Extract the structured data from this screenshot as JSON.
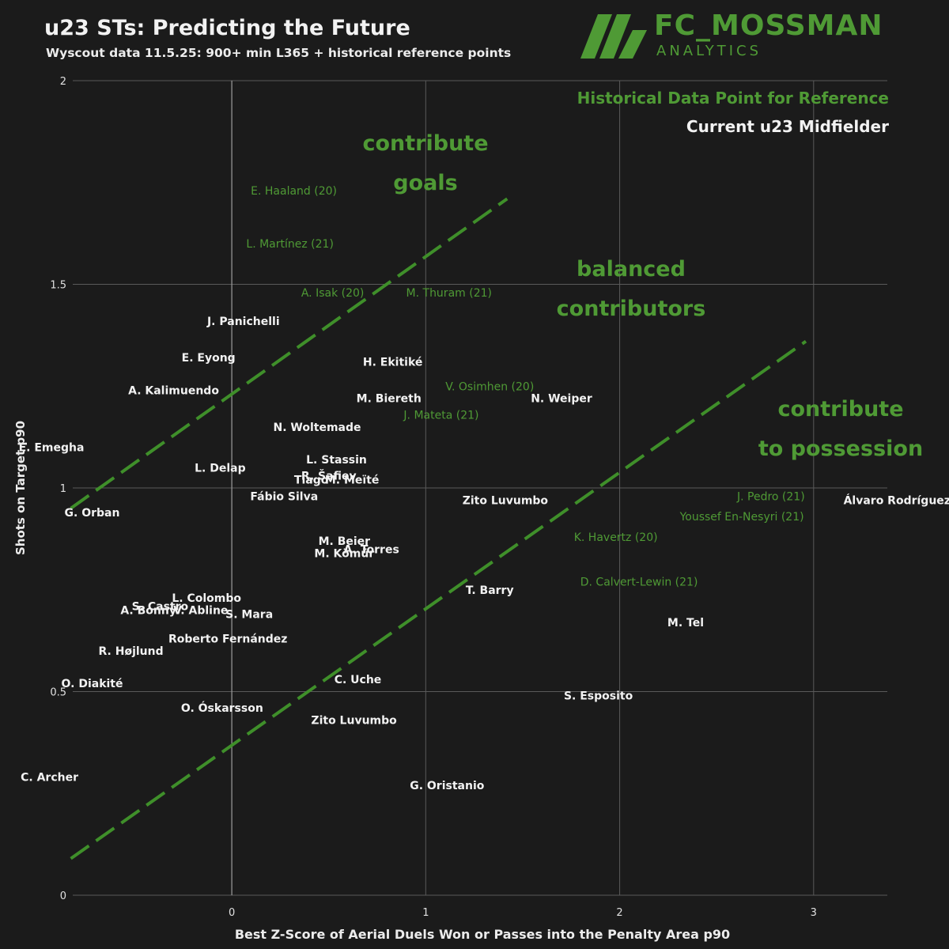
{
  "header": {
    "title": "u23 STs: Predicting the Future",
    "subtitle": "Wyscout data 11.5.25: 900+ min L365 + historical reference points"
  },
  "logo": {
    "name": "FC_MOSSMAN",
    "sub": "ANALYTICS",
    "color": "#4f9a35"
  },
  "legend": {
    "historical": "Historical Data Point for Reference",
    "current": "Current u23 Midfielder",
    "placement": "top-right"
  },
  "zones": {
    "goals": [
      "contribute",
      "goals"
    ],
    "balanced": [
      "balanced",
      "contributors"
    ],
    "possession": [
      "contribute",
      "to possession"
    ]
  },
  "colors": {
    "background": "#1b1b1b",
    "current": "#f2f2f2",
    "historical": "#4f9a35",
    "grid": "#5a5a5a",
    "zone_line": "#3f8f2a"
  },
  "chart_data": {
    "type": "scatter",
    "xlabel": "Best Z-Score of Aerial Duels Won or Passes into the Penalty Area p90",
    "ylabel": "Shots on Target p90",
    "xlim": [
      -0.82,
      3.38
    ],
    "ylim": [
      0,
      2
    ],
    "x_ticks": [
      0,
      1,
      2,
      3
    ],
    "y_ticks": [
      0,
      0.5,
      1,
      1.5,
      2
    ],
    "grid": true,
    "divider_lines": [
      {
        "from": [
          -0.83,
          0.95
        ],
        "to": [
          1.42,
          1.71
        ]
      },
      {
        "from": [
          -0.83,
          0.09
        ],
        "to": [
          2.96,
          1.36
        ]
      }
    ],
    "series": [
      {
        "name": "Historical Data Point for Reference",
        "points": [
          {
            "label": "E. Haaland (20)",
            "x": 0.32,
            "y": 1.73
          },
          {
            "label": "L. Martínez (21)",
            "x": 0.3,
            "y": 1.6
          },
          {
            "label": "A. Isak (20)",
            "x": 0.52,
            "y": 1.48
          },
          {
            "label": "M. Thuram (21)",
            "x": 1.12,
            "y": 1.48
          },
          {
            "label": "V. Osimhen (20)",
            "x": 1.33,
            "y": 1.25
          },
          {
            "label": "J. Mateta (21)",
            "x": 1.08,
            "y": 1.18
          },
          {
            "label": "J. Pedro (21)",
            "x": 2.78,
            "y": 0.98
          },
          {
            "label": "Youssef En-Nesyri (21)",
            "x": 2.63,
            "y": 0.93
          },
          {
            "label": "K. Havertz (20)",
            "x": 1.98,
            "y": 0.88
          },
          {
            "label": "D. Calvert-Lewin (21)",
            "x": 2.1,
            "y": 0.77
          }
        ]
      },
      {
        "name": "Current u23 Midfielder",
        "points": [
          {
            "label": "J. Panichelli",
            "x": 0.06,
            "y": 1.41
          },
          {
            "label": "E. Eyong",
            "x": -0.12,
            "y": 1.32
          },
          {
            "label": "H. Ekitiké",
            "x": 0.83,
            "y": 1.31
          },
          {
            "label": "A. Kalimuendo",
            "x": -0.3,
            "y": 1.24
          },
          {
            "label": "N. Weiper",
            "x": 1.7,
            "y": 1.22
          },
          {
            "label": "M. Biereth",
            "x": 0.81,
            "y": 1.22
          },
          {
            "label": "N. Woltemade",
            "x": 0.44,
            "y": 1.15
          },
          {
            "label": "E. Emegha",
            "x": -0.93,
            "y": 1.1
          },
          {
            "label": "L. Stassin",
            "x": 0.54,
            "y": 1.07
          },
          {
            "label": "L. Delap",
            "x": -0.06,
            "y": 1.05
          },
          {
            "label": "R. Šafiev",
            "x": 0.5,
            "y": 1.03
          },
          {
            "label": "Tiago",
            "x": 0.41,
            "y": 1.02
          },
          {
            "label": "M. Meïté",
            "x": 0.62,
            "y": 1.02
          },
          {
            "label": "Fábio Silva",
            "x": 0.27,
            "y": 0.98
          },
          {
            "label": "Zito Luvumbo",
            "x": 1.41,
            "y": 0.97
          },
          {
            "label": "Álvaro Rodríguez",
            "x": 3.43,
            "y": 0.97
          },
          {
            "label": "G. Orban",
            "x": -0.72,
            "y": 0.94
          },
          {
            "label": "M. Beier",
            "x": 0.58,
            "y": 0.87
          },
          {
            "label": "A. Torres",
            "x": 0.72,
            "y": 0.85
          },
          {
            "label": "M. Kömür",
            "x": 0.58,
            "y": 0.84
          },
          {
            "label": "T. Barry",
            "x": 1.33,
            "y": 0.75
          },
          {
            "label": "L. Colombo",
            "x": -0.13,
            "y": 0.73
          },
          {
            "label": "S. Castro",
            "x": -0.37,
            "y": 0.71
          },
          {
            "label": "A. Bonny",
            "x": -0.43,
            "y": 0.7
          },
          {
            "label": "V. Abline",
            "x": -0.16,
            "y": 0.7
          },
          {
            "label": "S. Mara",
            "x": 0.09,
            "y": 0.69
          },
          {
            "label": "M. Tel",
            "x": 2.34,
            "y": 0.67
          },
          {
            "label": "Roberto Fernández",
            "x": -0.02,
            "y": 0.63
          },
          {
            "label": "R. Højlund",
            "x": -0.52,
            "y": 0.6
          },
          {
            "label": "C. Uche",
            "x": 0.65,
            "y": 0.53
          },
          {
            "label": "O. Diakité",
            "x": -0.72,
            "y": 0.52
          },
          {
            "label": "S. Esposito",
            "x": 1.89,
            "y": 0.49
          },
          {
            "label": "O. Óskarsson",
            "x": -0.05,
            "y": 0.46
          },
          {
            "label": "Zito Luvumbo",
            "x": 0.63,
            "y": 0.43
          },
          {
            "label": "C. Archer",
            "x": -0.94,
            "y": 0.29
          },
          {
            "label": "G. Oristanio",
            "x": 1.11,
            "y": 0.27
          }
        ]
      }
    ]
  }
}
